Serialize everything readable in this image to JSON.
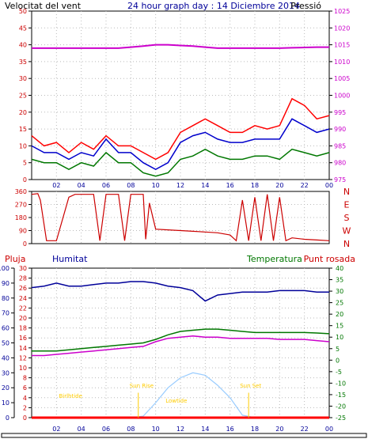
{
  "header": {
    "wind_label": "Velocitat del vent",
    "title": "24 hour graph day : 14 Diciembre 2014",
    "pressure_label": "Pressió"
  },
  "lower_header": {
    "rain_label": "Pluja",
    "humidity_label": "Humitat",
    "temperature_label": "Temperatura",
    "dewpoint_label": "Punt rosada"
  },
  "colors": {
    "wind": "#ff0000",
    "gust": "#ff0000",
    "wind_avg": "#0000cc",
    "wind_low": "#007700",
    "pressure": "#cc00cc",
    "direction": "#cc0000",
    "humidity": "#000099",
    "temperature": "#007700",
    "dewpoint": "#cc00cc",
    "solar": "#99ccff",
    "rain": "#ff0000",
    "astro_text": "#ffcc00",
    "grid": "#bbbbbb"
  },
  "chart_data": [
    {
      "type": "line",
      "name": "wind_pressure",
      "title": "24 hour graph day : 14 Diciembre 2014",
      "x_ticks": [
        "02",
        "04",
        "06",
        "08",
        "10",
        "12",
        "14",
        "16",
        "18",
        "20",
        "22",
        "00"
      ],
      "x_range": [
        0,
        24
      ],
      "y_left_ticks": [
        "0",
        "5",
        "10",
        "15",
        "20",
        "25",
        "30",
        "35",
        "40",
        "45",
        "50"
      ],
      "ylim_left": [
        0,
        50
      ],
      "y_right_ticks": [
        "975",
        "980",
        "985",
        "990",
        "995",
        "1000",
        "1005",
        "1010",
        "1015",
        "1020",
        "1025"
      ],
      "ylim_right": [
        975,
        1025
      ],
      "hours": [
        0,
        1,
        2,
        3,
        4,
        5,
        6,
        7,
        8,
        9,
        10,
        11,
        12,
        13,
        14,
        15,
        16,
        17,
        18,
        19,
        20,
        21,
        22,
        23,
        24
      ],
      "gust": [
        13,
        10,
        11,
        8,
        11,
        9,
        13,
        10,
        10,
        8,
        6,
        8,
        14,
        16,
        18,
        16,
        14,
        14,
        16,
        15,
        16,
        24,
        22,
        18,
        19
      ],
      "wind_avg": [
        10,
        8,
        8,
        6,
        8,
        7,
        12,
        8,
        8,
        5,
        3,
        5,
        11,
        13,
        14,
        12,
        11,
        11,
        12,
        12,
        12,
        18,
        16,
        14,
        15
      ],
      "wind_low": [
        6,
        5,
        5,
        3,
        5,
        4,
        8,
        5,
        5,
        2,
        1,
        2,
        6,
        7,
        9,
        7,
        6,
        6,
        7,
        7,
        6,
        9,
        8,
        7,
        8
      ],
      "pressure": [
        1014,
        1014,
        1014,
        1014,
        1014,
        1014,
        1014,
        1014,
        1014.3,
        1014.6,
        1015,
        1015,
        1014.8,
        1014.6,
        1014.3,
        1014,
        1014,
        1014,
        1014,
        1014,
        1014,
        1014.1,
        1014.2,
        1014.3,
        1014.3
      ]
    },
    {
      "type": "line",
      "name": "wind_direction",
      "y_ticks": [
        "0",
        "90",
        "180",
        "270",
        "360"
      ],
      "ylim": [
        0,
        360
      ],
      "compass_labels": [
        "N",
        "W",
        "S",
        "E",
        "N"
      ],
      "hours": [
        0,
        0.5,
        0.7,
        1.2,
        1.5,
        2,
        3,
        3.5,
        4,
        5,
        5.5,
        6,
        7,
        7.5,
        8,
        9,
        9.2,
        9.5,
        10,
        11,
        12,
        13,
        14,
        15,
        16,
        16.5,
        17,
        17.5,
        18,
        18.5,
        19,
        19.5,
        20,
        20.5,
        21,
        22,
        23,
        24
      ],
      "direction": [
        340,
        345,
        300,
        20,
        20,
        20,
        320,
        340,
        340,
        340,
        20,
        340,
        340,
        20,
        340,
        340,
        30,
        280,
        100,
        95,
        90,
        85,
        80,
        75,
        60,
        20,
        300,
        20,
        320,
        20,
        340,
        20,
        320,
        20,
        40,
        30,
        25,
        20
      ]
    },
    {
      "type": "line",
      "name": "rain_humidity_temperature",
      "x_ticks": [
        "02",
        "04",
        "06",
        "08",
        "10",
        "12",
        "14",
        "16",
        "18",
        "20",
        "22",
        "00"
      ],
      "rain_ticks": [
        "0",
        "2",
        "4",
        "6",
        "8",
        "10",
        "12",
        "14",
        "16",
        "18",
        "20",
        "22",
        "24",
        "26",
        "28",
        "30"
      ],
      "rain_range": [
        0,
        30
      ],
      "humidity_ticks": [
        "0",
        "10",
        "20",
        "30",
        "40",
        "50",
        "60",
        "70",
        "80",
        "90",
        "100"
      ],
      "humidity_range": [
        0,
        100
      ],
      "temperature_ticks": [
        "-25",
        "-20",
        "-15",
        "-10",
        "-5",
        "0",
        "5",
        "10",
        "15",
        "20",
        "25",
        "30",
        "35",
        "40"
      ],
      "temperature_range": [
        -25,
        40
      ],
      "hours": [
        0,
        1,
        2,
        3,
        4,
        5,
        6,
        7,
        8,
        9,
        10,
        11,
        12,
        13,
        14,
        15,
        16,
        17,
        18,
        19,
        20,
        21,
        22,
        23,
        24
      ],
      "humidity": [
        87,
        88,
        90,
        88,
        88,
        89,
        90,
        90,
        91,
        91,
        90,
        88,
        87,
        85,
        78,
        82,
        83,
        84,
        84,
        84,
        85,
        85,
        85,
        84,
        84
      ],
      "temperature": [
        4,
        4,
        4,
        4.5,
        5,
        5.5,
        6,
        6.5,
        7,
        7.5,
        9,
        11,
        12.5,
        13,
        13.5,
        13.5,
        13,
        12.5,
        12,
        12,
        12,
        12,
        12,
        11.8,
        11.5
      ],
      "dewpoint": [
        2,
        2,
        2.5,
        3,
        3.5,
        4,
        4.5,
        5,
        5.5,
        6,
        8,
        9.5,
        10,
        10.5,
        10,
        10,
        9.5,
        9.5,
        9.5,
        9.5,
        9,
        9,
        9,
        8.5,
        8
      ],
      "solar": [
        0,
        0,
        0,
        0,
        0,
        0,
        0,
        0,
        0,
        0.3,
        3,
        6,
        8,
        9,
        8.5,
        6.5,
        4,
        0.5,
        0,
        0,
        0,
        0,
        0,
        0,
        0
      ],
      "rain": [
        0,
        0,
        0,
        0,
        0,
        0,
        0,
        0,
        0,
        0,
        0,
        0,
        0,
        0,
        0,
        0,
        0,
        0,
        0,
        0,
        0,
        0,
        0,
        0,
        0
      ],
      "annotations": [
        {
          "text": "Birlhtide",
          "hour": 2.2,
          "value": 4
        },
        {
          "text": "Sun Rise",
          "hour": 7.9,
          "value": 6
        },
        {
          "text": "Lowtide",
          "hour": 10.8,
          "value": 3
        },
        {
          "text": "Sun Set",
          "hour": 16.8,
          "value": 6
        }
      ]
    }
  ]
}
